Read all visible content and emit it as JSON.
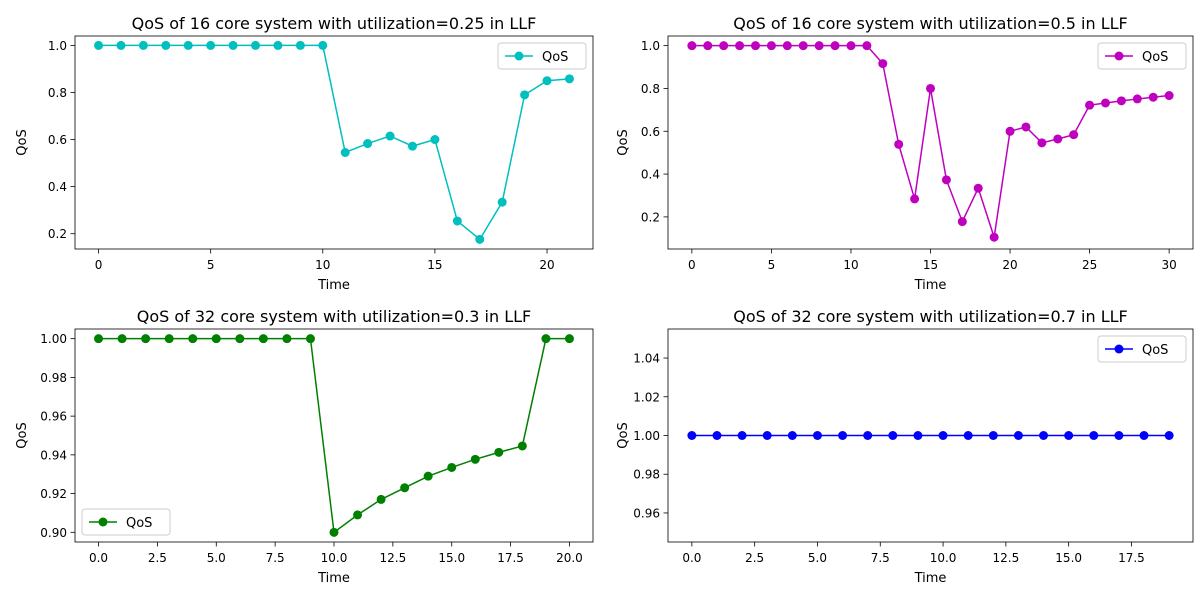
{
  "chart_data": [
    {
      "type": "line",
      "title": "QoS of 16 core system with utilization=0.25 in LLF",
      "xlabel": "Time",
      "ylabel": "QoS",
      "xlim": [
        -1.05,
        22.05
      ],
      "ylim": [
        0.135,
        1.04
      ],
      "xticks": [
        0,
        5,
        10,
        15,
        20
      ],
      "xtick_labels": [
        "0",
        "5",
        "10",
        "15",
        "20"
      ],
      "yticks": [
        0.2,
        0.4,
        0.6,
        0.8,
        1.0
      ],
      "ytick_labels": [
        "0.2",
        "0.4",
        "0.6",
        "0.8",
        "1.0"
      ],
      "grid": false,
      "legend": "top-right",
      "series": [
        {
          "name": "QoS",
          "color": "#00bfbf",
          "marker": "circle",
          "x": [
            0,
            1,
            2,
            3,
            4,
            5,
            6,
            7,
            8,
            9,
            10,
            11,
            12,
            13,
            14,
            15,
            16,
            17,
            18,
            19,
            20,
            21
          ],
          "y": [
            1.0,
            1.0,
            1.0,
            1.0,
            1.0,
            1.0,
            1.0,
            1.0,
            1.0,
            1.0,
            1.0,
            0.545,
            0.583,
            0.615,
            0.572,
            0.6,
            0.254,
            0.176,
            0.334,
            0.79,
            0.85,
            0.858
          ]
        }
      ]
    },
    {
      "type": "line",
      "title": "QoS of 16 core system with utilization=0.5 in LLF",
      "xlabel": "Time",
      "ylabel": "QoS",
      "xlim": [
        -1.5,
        31.5
      ],
      "ylim": [
        0.05,
        1.045
      ],
      "xticks": [
        0,
        5,
        10,
        15,
        20,
        25,
        30
      ],
      "xtick_labels": [
        "0",
        "5",
        "10",
        "15",
        "20",
        "25",
        "30"
      ],
      "yticks": [
        0.2,
        0.4,
        0.6,
        0.8,
        1.0
      ],
      "ytick_labels": [
        "0.2",
        "0.4",
        "0.6",
        "0.8",
        "1.0"
      ],
      "grid": false,
      "legend": "top-right",
      "series": [
        {
          "name": "QoS",
          "color": "#bf00bf",
          "marker": "circle",
          "x": [
            0,
            1,
            2,
            3,
            4,
            5,
            6,
            7,
            8,
            9,
            10,
            11,
            12,
            13,
            14,
            15,
            16,
            17,
            18,
            19,
            20,
            21,
            22,
            23,
            24,
            25,
            26,
            27,
            28,
            29,
            30
          ],
          "y": [
            1.0,
            1.0,
            1.0,
            1.0,
            1.0,
            1.0,
            1.0,
            1.0,
            1.0,
            1.0,
            1.0,
            1.0,
            0.916,
            0.539,
            0.284,
            0.8,
            0.373,
            0.178,
            0.334,
            0.105,
            0.6,
            0.62,
            0.546,
            0.564,
            0.584,
            0.722,
            0.732,
            0.742,
            0.751,
            0.759,
            0.767
          ]
        }
      ]
    },
    {
      "type": "line",
      "title": "QoS of 32 core system with utilization=0.3 in LLF",
      "xlabel": "Time",
      "ylabel": "QoS",
      "xlim": [
        -1.0,
        21.0
      ],
      "ylim": [
        0.895,
        1.005
      ],
      "xticks": [
        0,
        2.5,
        5,
        7.5,
        10,
        12.5,
        15,
        17.5,
        20
      ],
      "xtick_labels": [
        "0.0",
        "2.5",
        "5.0",
        "7.5",
        "10.0",
        "12.5",
        "15.0",
        "17.5",
        "20.0"
      ],
      "yticks": [
        0.9,
        0.92,
        0.94,
        0.96,
        0.98,
        1.0
      ],
      "ytick_labels": [
        "0.90",
        "0.92",
        "0.94",
        "0.96",
        "0.98",
        "1.00"
      ],
      "grid": false,
      "legend": "bottom-left",
      "series": [
        {
          "name": "QoS",
          "color": "#008000",
          "marker": "circle",
          "x": [
            0,
            1,
            2,
            3,
            4,
            5,
            6,
            7,
            8,
            9,
            10,
            11,
            12,
            13,
            14,
            15,
            16,
            17,
            18,
            19,
            20
          ],
          "y": [
            1.0,
            1.0,
            1.0,
            1.0,
            1.0,
            1.0,
            1.0,
            1.0,
            1.0,
            1.0,
            0.9,
            0.909,
            0.917,
            0.923,
            0.929,
            0.9335,
            0.9377,
            0.9413,
            0.9446,
            1.0,
            1.0
          ]
        }
      ]
    },
    {
      "type": "line",
      "title": "QoS of 32 core system with utilization=0.7 in LLF",
      "xlabel": "Time",
      "ylabel": "QoS",
      "xlim": [
        -0.95,
        19.95
      ],
      "ylim": [
        0.945,
        1.055
      ],
      "xticks": [
        0,
        2.5,
        5,
        7.5,
        10,
        12.5,
        15,
        17.5
      ],
      "xtick_labels": [
        "0.0",
        "2.5",
        "5.0",
        "7.5",
        "10.0",
        "12.5",
        "15.0",
        "17.5"
      ],
      "yticks": [
        0.96,
        0.98,
        1.0,
        1.02,
        1.04
      ],
      "ytick_labels": [
        "0.96",
        "0.98",
        "1.00",
        "1.02",
        "1.04"
      ],
      "grid": false,
      "legend": "top-right",
      "series": [
        {
          "name": "QoS",
          "color": "#0000ff",
          "marker": "circle",
          "x": [
            0,
            1,
            2,
            3,
            4,
            5,
            6,
            7,
            8,
            9,
            10,
            11,
            12,
            13,
            14,
            15,
            16,
            17,
            18,
            19
          ],
          "y": [
            1.0,
            1.0,
            1.0,
            1.0,
            1.0,
            1.0,
            1.0,
            1.0,
            1.0,
            1.0,
            1.0,
            1.0,
            1.0,
            1.0,
            1.0,
            1.0,
            1.0,
            1.0,
            1.0,
            1.0
          ]
        }
      ]
    }
  ]
}
